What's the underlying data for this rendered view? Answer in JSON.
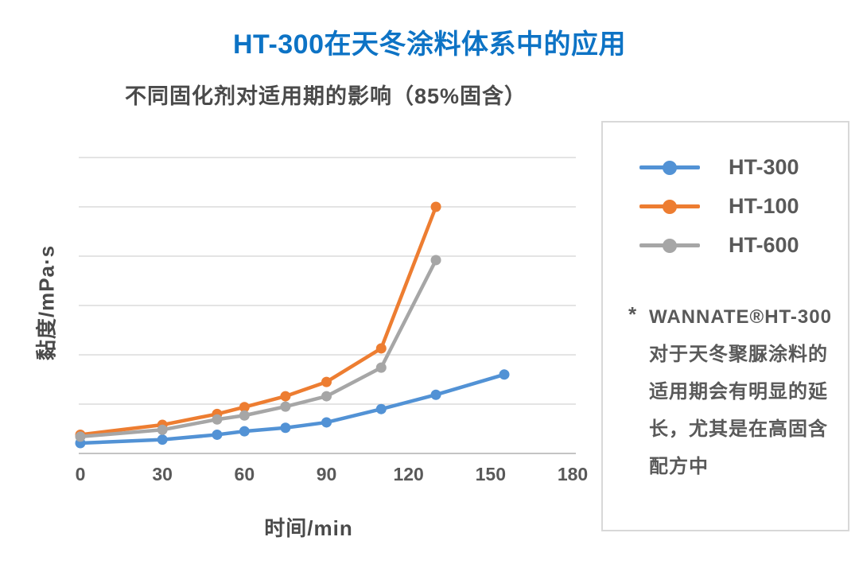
{
  "page": {
    "title": "HT-300在天冬涂料体系中的应用"
  },
  "chart_data": {
    "type": "line",
    "title": "不同固化剂对适用期的影响（85%固含）",
    "xlabel": "时间/min",
    "ylabel": "黏度/mPa·s",
    "x_ticks": [
      0,
      30,
      60,
      90,
      120,
      150,
      180
    ],
    "xlim": [
      0,
      180
    ],
    "ylim": [
      0,
      6
    ],
    "grid": true,
    "y_tick_labels_visible": false,
    "y_unit_note": "y-axis shows no numeric tick labels; series values are estimated in gridline units (1 = one horizontal gridline interval above the baseline)",
    "legend_position": "right",
    "x": [
      0,
      30,
      50,
      60,
      75,
      90,
      110,
      130,
      155
    ],
    "series": [
      {
        "name": "HT-300",
        "color": "#5292d5",
        "values": [
          0.21,
          0.28,
          0.38,
          0.45,
          0.52,
          0.63,
          0.9,
          1.19,
          1.6
        ]
      },
      {
        "name": "HT-100",
        "color": "#ed7d31",
        "values": [
          0.38,
          0.58,
          0.8,
          0.94,
          1.16,
          1.45,
          2.13,
          5.0,
          null
        ]
      },
      {
        "name": "HT-600",
        "color": "#a6a6a6",
        "values": [
          0.34,
          0.48,
          0.69,
          0.77,
          0.95,
          1.16,
          1.74,
          3.92,
          null
        ]
      }
    ]
  },
  "note": {
    "bullet": "*",
    "brand": "WANNATE®HT-300",
    "body": "对于天冬聚脲涂料的适用期会有明显的延长，尤其是在高固含配方中"
  },
  "colors": {
    "title": "#0d73c5",
    "text_dark": "#4a4a4a",
    "text_gray": "#595959",
    "gridline": "#dcdcdc",
    "axis_line": "#c4c4c4",
    "panel_border": "#d8d8d8"
  }
}
